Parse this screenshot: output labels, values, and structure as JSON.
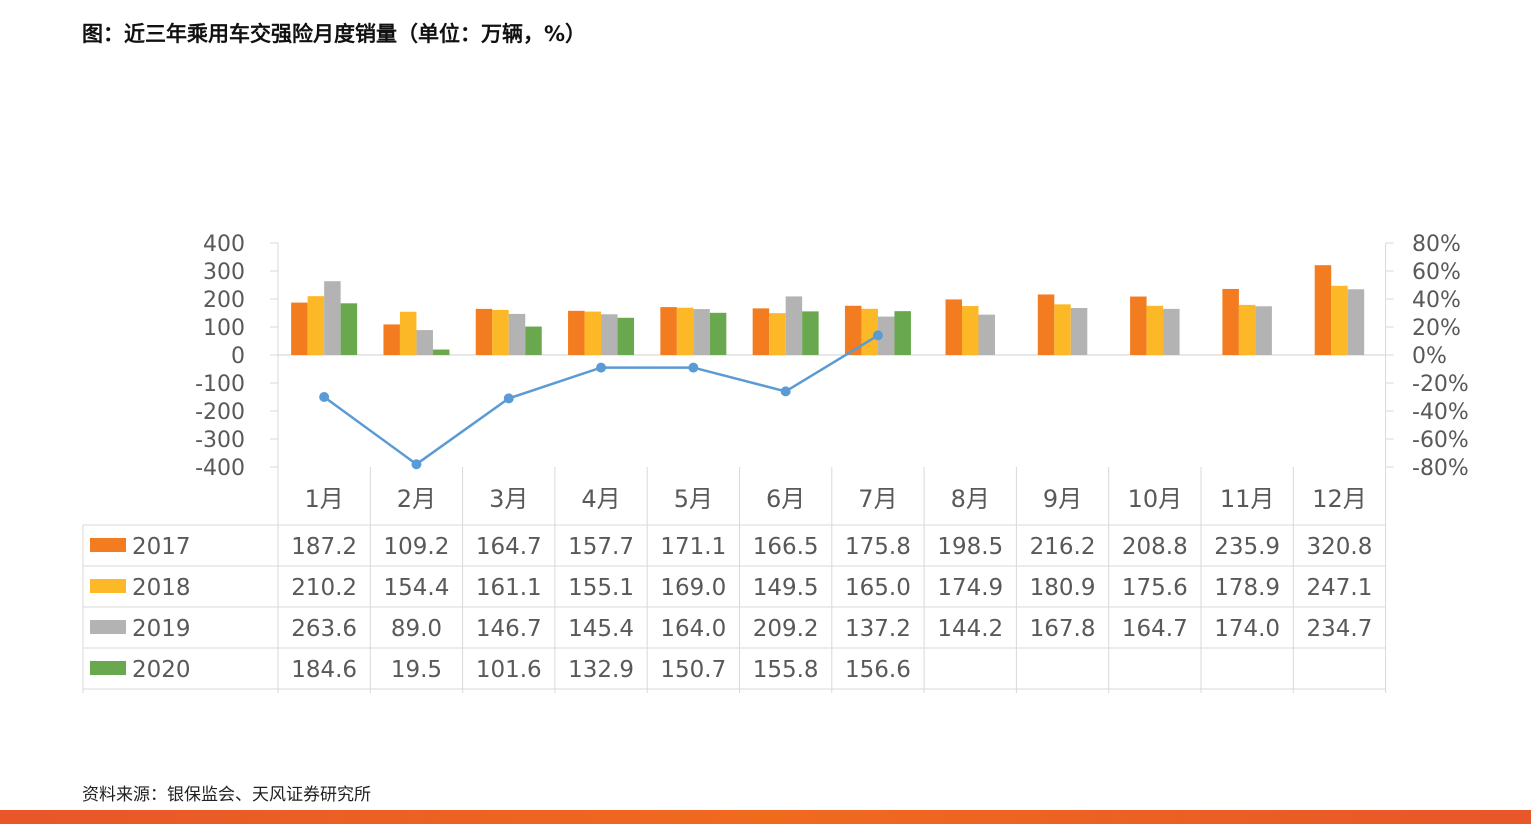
{
  "title": "图：近三年乘用车交强险月度销量（单位：万辆，%）",
  "source": "资料来源：银保监会、天风证券研究所",
  "colors": {
    "2017": "#f47c20",
    "2018": "#fdb827",
    "2019": "#b3b3b3",
    "2020": "#6aa84f",
    "line": "#5b9bd5",
    "grid": "#d9d9d9",
    "axis_text": "#595959"
  },
  "chart_data": {
    "type": "bar",
    "categories": [
      "1月",
      "2月",
      "3月",
      "4月",
      "5月",
      "6月",
      "7月",
      "8月",
      "9月",
      "10月",
      "11月",
      "12月"
    ],
    "series": [
      {
        "name": "2017",
        "values": [
          187.2,
          109.2,
          164.7,
          157.7,
          171.1,
          166.5,
          175.8,
          198.5,
          216.2,
          208.8,
          235.9,
          320.8
        ]
      },
      {
        "name": "2018",
        "values": [
          210.2,
          154.4,
          161.1,
          155.1,
          169.0,
          149.5,
          165.0,
          174.9,
          180.9,
          175.6,
          178.9,
          247.1
        ]
      },
      {
        "name": "2019",
        "values": [
          263.6,
          89.0,
          146.7,
          145.4,
          164.0,
          209.2,
          137.2,
          144.2,
          167.8,
          164.7,
          174.0,
          234.7
        ]
      },
      {
        "name": "2020",
        "values": [
          184.6,
          19.5,
          101.6,
          132.9,
          150.7,
          155.8,
          156.6,
          null,
          null,
          null,
          null,
          null
        ]
      }
    ],
    "line_series": {
      "values": [
        -30,
        -78,
        -31,
        -9,
        -9,
        -26,
        14,
        null,
        null,
        null,
        null,
        null
      ],
      "axis": "right"
    },
    "ylim_left": [
      -400,
      400
    ],
    "yticks_left": [
      "400",
      "300",
      "200",
      "100",
      "0",
      "-100",
      "-200",
      "-300",
      "-400"
    ],
    "ylim_right": [
      -80,
      80
    ],
    "yticks_right": [
      "80%",
      "60%",
      "40%",
      "20%",
      "0%",
      "-20%",
      "-40%",
      "-60%",
      "-80%"
    ],
    "table": {
      "rows": [
        {
          "label": "2017",
          "cells": [
            "187.2",
            "109.2",
            "164.7",
            "157.7",
            "171.1",
            "166.5",
            "175.8",
            "198.5",
            "216.2",
            "208.8",
            "235.9",
            "320.8"
          ]
        },
        {
          "label": "2018",
          "cells": [
            "210.2",
            "154.4",
            "161.1",
            "155.1",
            "169.0",
            "149.5",
            "165.0",
            "174.9",
            "180.9",
            "175.6",
            "178.9",
            "247.1"
          ]
        },
        {
          "label": "2019",
          "cells": [
            "263.6",
            "89.0",
            "146.7",
            "145.4",
            "164.0",
            "209.2",
            "137.2",
            "144.2",
            "167.8",
            "164.7",
            "174.0",
            "234.7"
          ]
        },
        {
          "label": "2020",
          "cells": [
            "184.6",
            "19.5",
            "101.6",
            "132.9",
            "150.7",
            "155.8",
            "156.6",
            "",
            "",
            "",
            "",
            ""
          ]
        }
      ]
    }
  }
}
